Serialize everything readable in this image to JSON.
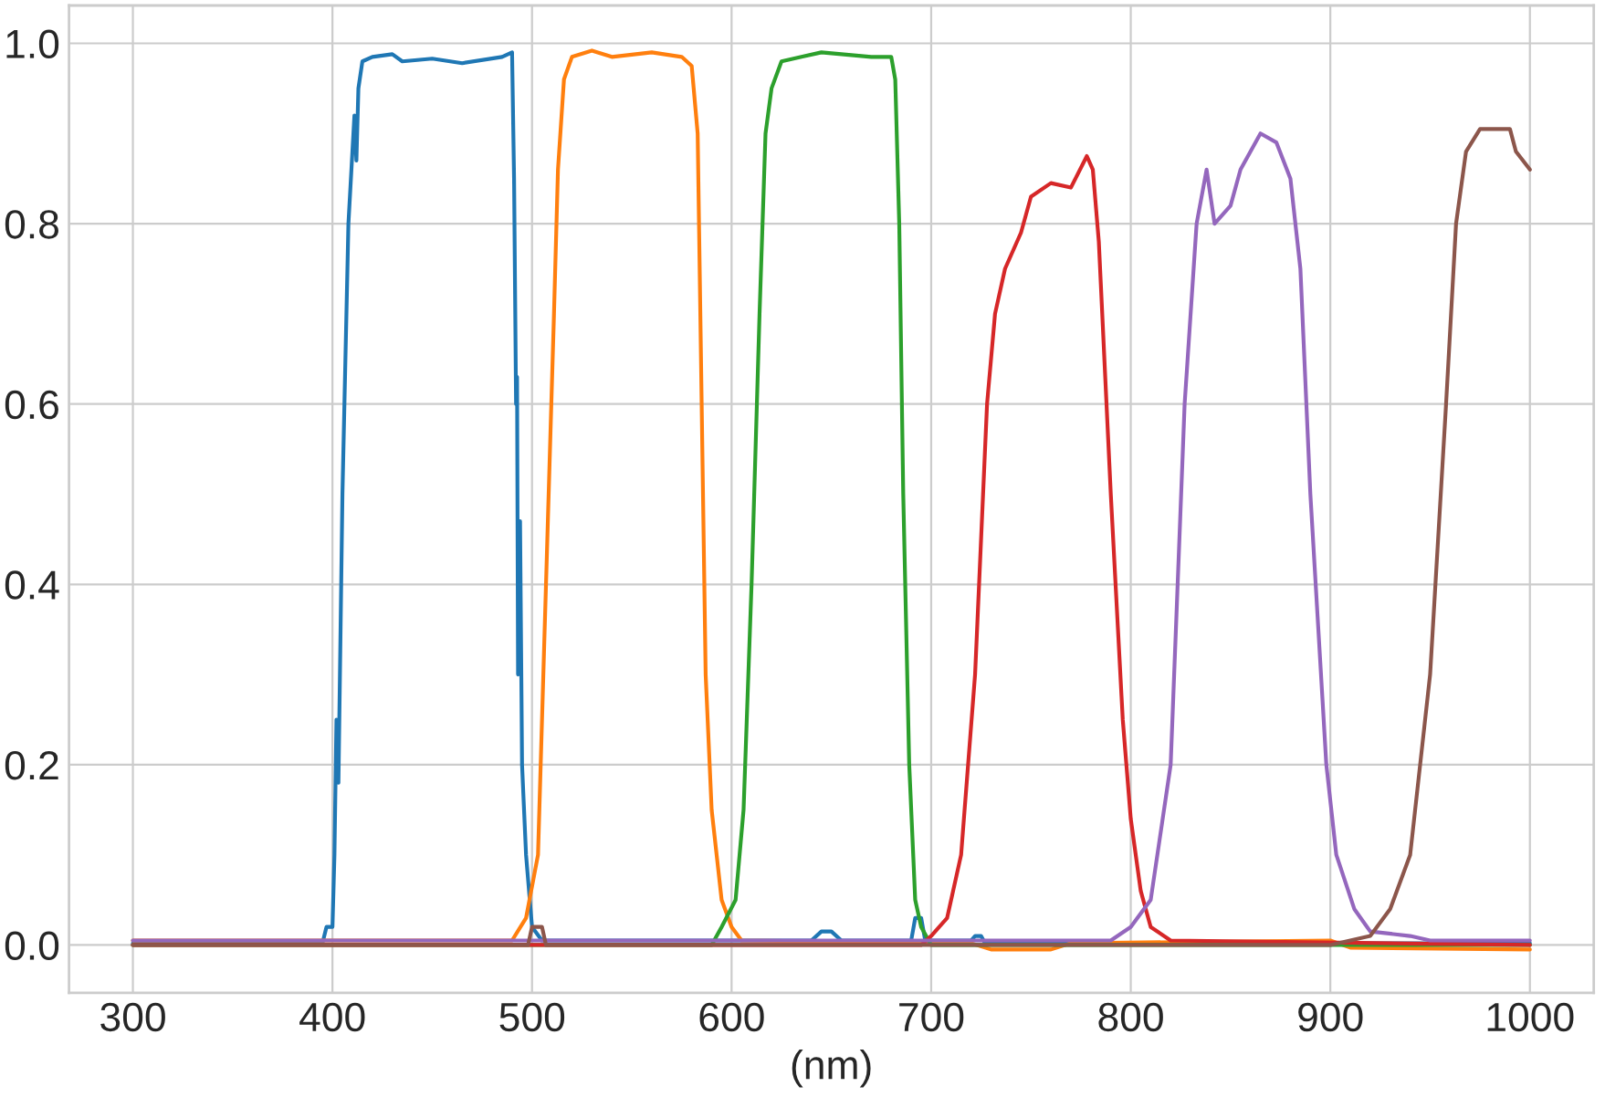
{
  "chart_data": {
    "type": "line",
    "xlabel": "(nm)",
    "xlim": [
      268,
      1032
    ],
    "ylim": [
      -0.053,
      1.042
    ],
    "xticks": [
      300,
      400,
      500,
      600,
      700,
      800,
      900,
      1000
    ],
    "yticks": [
      {
        "value": 0,
        "label": "0.0"
      },
      {
        "value": 0.2,
        "label": "0.2"
      },
      {
        "value": 0.4,
        "label": "0.4"
      },
      {
        "value": 0.6,
        "label": "0.6"
      },
      {
        "value": 0.8,
        "label": "0.8"
      },
      {
        "value": 1,
        "label": "1.0"
      }
    ],
    "grid": true,
    "legend": false,
    "marker": "none",
    "line_style": "solid",
    "series": [
      {
        "color": "#1f77b4",
        "x": [
          300,
          395,
          397,
          400,
          401,
          402,
          403,
          405,
          408,
          411,
          412,
          413,
          415,
          420,
          430,
          435,
          450,
          465,
          485,
          490,
          491,
          492,
          492.5,
          493,
          494,
          495,
          497,
          500,
          505,
          640,
          645,
          650,
          655,
          690,
          692,
          695,
          697,
          720,
          722,
          725,
          727,
          1000
        ],
        "values": [
          0.002,
          0.002,
          0.02,
          0.02,
          0.1,
          0.25,
          0.18,
          0.5,
          0.8,
          0.92,
          0.87,
          0.95,
          0.98,
          0.985,
          0.988,
          0.98,
          0.983,
          0.978,
          0.985,
          0.99,
          0.85,
          0.6,
          0.63,
          0.3,
          0.47,
          0.2,
          0.1,
          0.02,
          0.005,
          0.005,
          0.015,
          0.015,
          0.005,
          0.005,
          0.03,
          0.03,
          0.005,
          0.005,
          0.01,
          0.01,
          0.002,
          0.002
        ]
      },
      {
        "color": "#ff7f0e",
        "x": [
          300,
          490,
          497,
          503,
          507,
          511,
          513,
          516,
          520,
          530,
          540,
          560,
          575,
          580,
          583,
          585,
          587,
          590,
          595,
          600,
          605,
          720,
          730,
          760,
          770,
          900,
          910,
          1000
        ],
        "values": [
          0.005,
          0.005,
          0.03,
          0.1,
          0.4,
          0.7,
          0.86,
          0.96,
          0.985,
          0.992,
          0.985,
          0.99,
          0.985,
          0.975,
          0.9,
          0.6,
          0.3,
          0.15,
          0.05,
          0.02,
          0.005,
          0.002,
          -0.005,
          -0.005,
          0.002,
          0.005,
          -0.003,
          -0.005
        ]
      },
      {
        "color": "#2ca02c",
        "x": [
          300,
          590,
          595,
          602,
          606,
          610,
          614,
          617,
          620,
          625,
          635,
          645,
          670,
          680,
          682,
          684,
          686,
          689,
          692,
          695,
          700,
          1000
        ],
        "values": [
          0.0,
          0.0,
          0.02,
          0.05,
          0.15,
          0.4,
          0.7,
          0.9,
          0.95,
          0.98,
          0.985,
          0.99,
          0.985,
          0.985,
          0.96,
          0.8,
          0.5,
          0.2,
          0.05,
          0.02,
          0.0,
          0.0
        ]
      },
      {
        "color": "#d62728",
        "x": [
          300,
          695,
          700,
          708,
          715,
          722,
          728,
          732,
          737,
          745,
          750,
          760,
          770,
          778,
          781,
          784,
          790,
          796,
          800,
          805,
          810,
          820,
          1000
        ],
        "values": [
          0.0,
          0.0,
          0.01,
          0.03,
          0.1,
          0.3,
          0.6,
          0.7,
          0.75,
          0.79,
          0.83,
          0.845,
          0.84,
          0.875,
          0.86,
          0.78,
          0.5,
          0.25,
          0.14,
          0.06,
          0.02,
          0.005,
          0.0
        ]
      },
      {
        "color": "#9467bd",
        "x": [
          300,
          790,
          800,
          810,
          820,
          827,
          833,
          838,
          842,
          850,
          855,
          865,
          873,
          880,
          885,
          890,
          898,
          903,
          912,
          920,
          940,
          950,
          1000
        ],
        "values": [
          0.005,
          0.005,
          0.02,
          0.05,
          0.2,
          0.6,
          0.8,
          0.86,
          0.8,
          0.82,
          0.86,
          0.9,
          0.89,
          0.85,
          0.75,
          0.5,
          0.2,
          0.1,
          0.04,
          0.015,
          0.01,
          0.005,
          0.005
        ]
      },
      {
        "color": "#8c564b",
        "x": [
          300,
          498,
          500,
          505,
          507,
          900,
          920,
          930,
          940,
          950,
          958,
          963,
          968,
          975,
          990,
          993,
          1000
        ],
        "values": [
          0.0,
          0.0,
          0.02,
          0.02,
          0.0,
          0.0,
          0.01,
          0.04,
          0.1,
          0.3,
          0.6,
          0.8,
          0.88,
          0.905,
          0.905,
          0.88,
          0.86
        ]
      }
    ]
  }
}
